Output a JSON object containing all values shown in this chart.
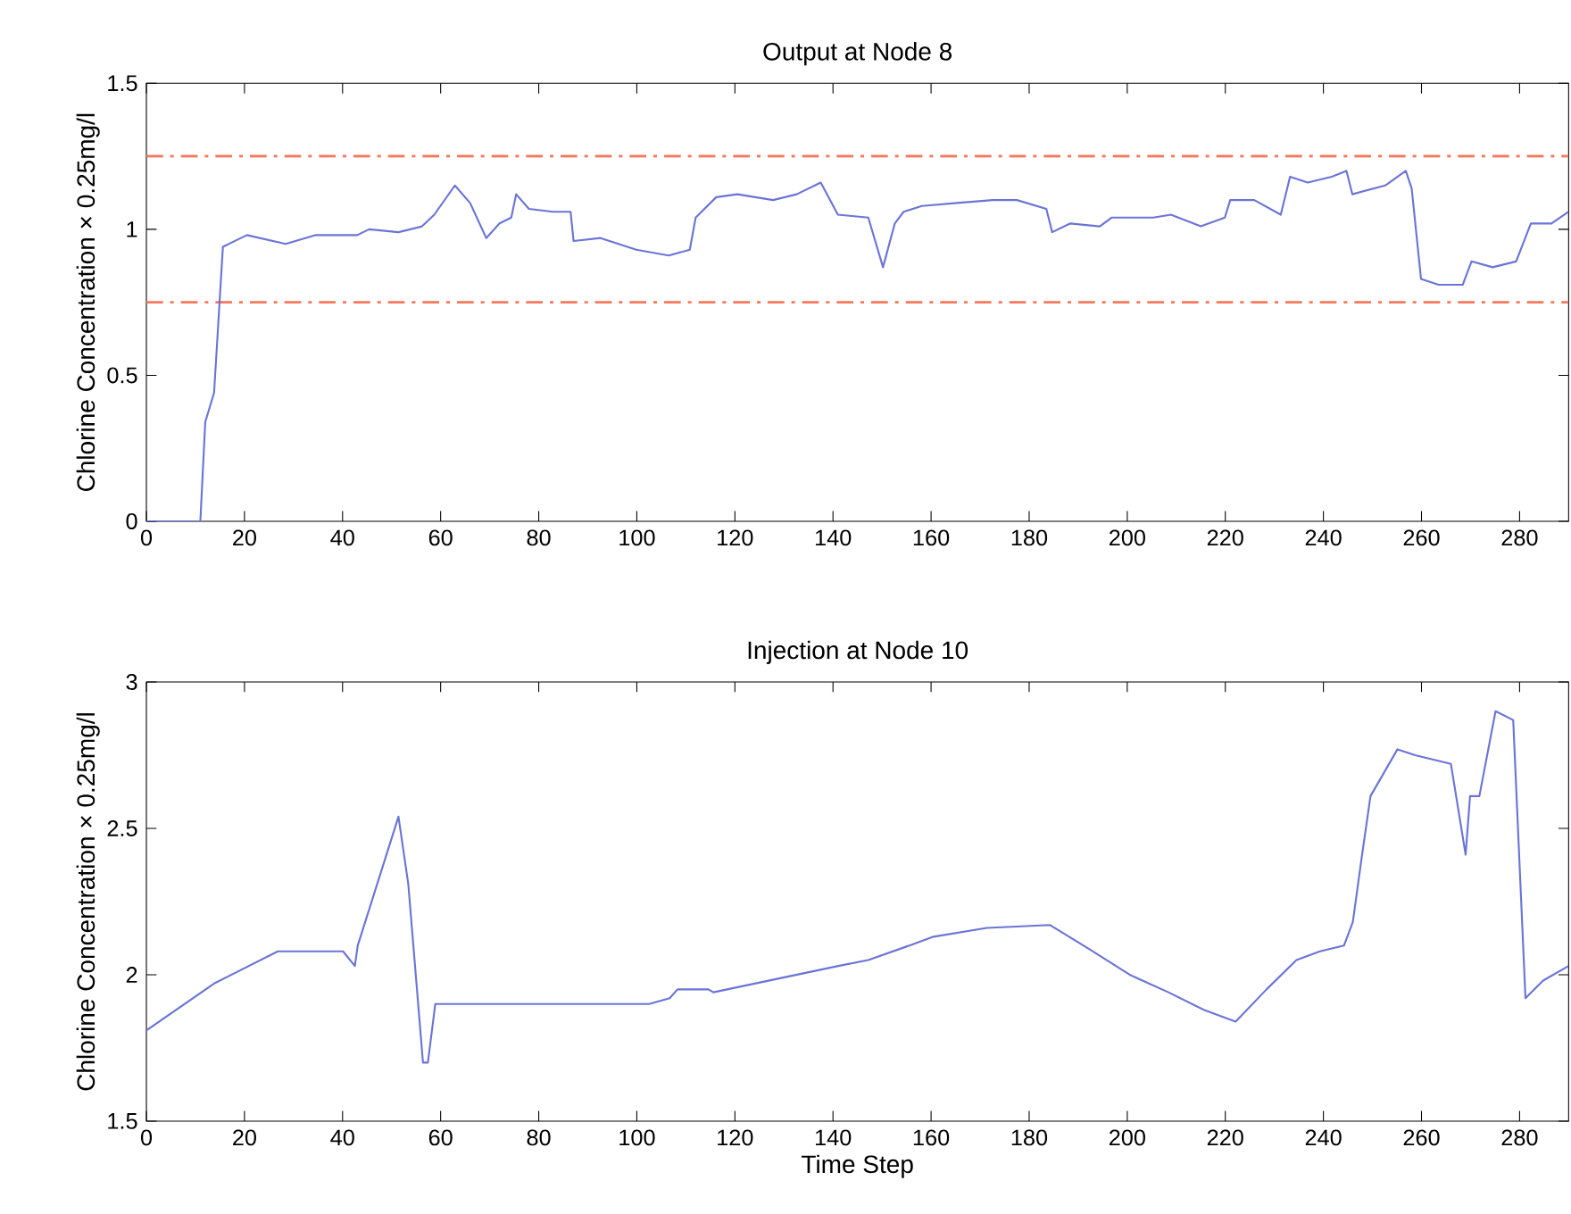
{
  "chart_data": [
    {
      "type": "line",
      "title": "Output at Node 8",
      "ylabel": "Chlorine Concentration × 0.25mg/l",
      "series": [
        {
          "color": "#6b74d6",
          "x": [
            0,
            11,
            12,
            13.8,
            15.6,
            20.5,
            28.4,
            34.4,
            43,
            45.4,
            51.4,
            56.2,
            58.7,
            62.9,
            66,
            69.3,
            72,
            74.4,
            75.4,
            78,
            82.9,
            86.5,
            87.1,
            92.6,
            99.9,
            106.5,
            110.8,
            112,
            116.2,
            120.5,
            127.8,
            132.6,
            137.5,
            141,
            147.2,
            150.2,
            152.6,
            154.4,
            158.1,
            165.3,
            172.6,
            177.5,
            183.5,
            184.7,
            188.4,
            194.4,
            196.8,
            205.3,
            208.9,
            215,
            219.9,
            221,
            225.9,
            231.3,
            233.2,
            236.8,
            241.7,
            244.7,
            245.9,
            252.6,
            256.8,
            258,
            259.9,
            263.5,
            268.4,
            270.2,
            274.5,
            279.3,
            282.3,
            286.5,
            290
          ],
          "values": [
            0,
            0,
            0.34,
            0.44,
            0.94,
            0.98,
            0.95,
            0.98,
            0.98,
            1.0,
            0.99,
            1.01,
            1.05,
            1.15,
            1.09,
            0.97,
            1.02,
            1.04,
            1.12,
            1.07,
            1.06,
            1.06,
            0.96,
            0.97,
            0.93,
            0.91,
            0.93,
            1.04,
            1.11,
            1.12,
            1.1,
            1.12,
            1.16,
            1.05,
            1.04,
            0.87,
            1.02,
            1.06,
            1.08,
            1.09,
            1.1,
            1.1,
            1.07,
            0.99,
            1.02,
            1.01,
            1.04,
            1.04,
            1.05,
            1.01,
            1.04,
            1.1,
            1.1,
            1.05,
            1.18,
            1.16,
            1.18,
            1.2,
            1.12,
            1.15,
            1.2,
            1.14,
            0.83,
            0.81,
            0.81,
            0.89,
            0.87,
            0.89,
            1.02,
            1.02,
            1.06
          ]
        }
      ],
      "ref_lines": [
        {
          "axis": "y",
          "value": 1.25,
          "color": "#f4785c"
        },
        {
          "axis": "y",
          "value": 0.75,
          "color": "#f4785c"
        }
      ],
      "xlim": [
        0,
        290
      ],
      "xticks": [
        0,
        20,
        40,
        60,
        80,
        100,
        120,
        140,
        160,
        180,
        200,
        220,
        240,
        260,
        280
      ],
      "ylim": [
        0,
        1.5
      ],
      "yticks": [
        0,
        0.5,
        1,
        1.5
      ]
    },
    {
      "type": "line",
      "title": "Injection at Node 10",
      "xlabel": "Time Step",
      "ylabel": "Chlorine Concentration × 0.25mg/l",
      "series": [
        {
          "color": "#6b74d6",
          "x": [
            0,
            13.8,
            26.8,
            40.1,
            42.5,
            43.1,
            51.4,
            53.4,
            56.4,
            57.4,
            58.9,
            102.5,
            106.7,
            108.3,
            114.6,
            115.6,
            141.1,
            147.2,
            155.6,
            160.5,
            171.4,
            184.2,
            192,
            200.5,
            208.4,
            215.6,
            222.1,
            228.4,
            234.5,
            239.3,
            244.2,
            246,
            247.8,
            249.6,
            255.1,
            258.7,
            266,
            269,
            269.9,
            271.8,
            275.1,
            278.7,
            281.2,
            284.8,
            290
          ],
          "values": [
            1.81,
            1.97,
            2.08,
            2.08,
            2.03,
            2.1,
            2.54,
            2.31,
            1.7,
            1.7,
            1.9,
            1.9,
            1.92,
            1.95,
            1.95,
            1.94,
            2.03,
            2.05,
            2.1,
            2.13,
            2.16,
            2.17,
            2.09,
            2.0,
            1.94,
            1.88,
            1.84,
            1.95,
            2.05,
            2.08,
            2.1,
            2.18,
            2.4,
            2.61,
            2.77,
            2.75,
            2.72,
            2.41,
            2.61,
            2.61,
            2.9,
            2.87,
            1.92,
            1.98,
            2.03
          ]
        }
      ],
      "xlim": [
        0,
        290
      ],
      "xticks": [
        0,
        20,
        40,
        60,
        80,
        100,
        120,
        140,
        160,
        180,
        200,
        220,
        240,
        260,
        280
      ],
      "ylim": [
        1.5,
        3
      ],
      "yticks": [
        1.5,
        2,
        2.5,
        3
      ]
    }
  ]
}
